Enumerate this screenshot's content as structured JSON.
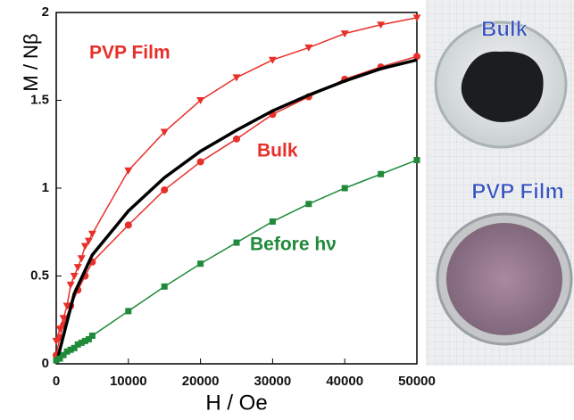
{
  "chart_data": {
    "type": "line",
    "xlabel": "H / Oe",
    "ylabel": "M / Nβ",
    "xlim": [
      0,
      50000
    ],
    "ylim": [
      0,
      2
    ],
    "xticks": [
      0,
      10000,
      20000,
      30000,
      40000,
      50000
    ],
    "yticks": [
      0,
      0.5,
      1,
      1.5,
      2
    ],
    "series": [
      {
        "name": "PVP Film",
        "color": "#e8302a",
        "marker": "triangle",
        "x": [
          0,
          500,
          1000,
          1500,
          2000,
          2500,
          3000,
          3500,
          4000,
          4500,
          5000,
          10000,
          15000,
          20000,
          25000,
          30000,
          35000,
          40000,
          45000,
          50000
        ],
        "values": [
          0.13,
          0.2,
          0.26,
          0.33,
          0.45,
          0.5,
          0.55,
          0.6,
          0.67,
          0.7,
          0.74,
          1.1,
          1.32,
          1.5,
          1.63,
          1.73,
          1.8,
          1.88,
          1.93,
          1.97
        ]
      },
      {
        "name": "Bulk",
        "color": "#e8302a",
        "marker": "circle",
        "x": [
          0,
          500,
          1000,
          2000,
          3000,
          4000,
          5000,
          10000,
          15000,
          20000,
          25000,
          30000,
          35000,
          40000,
          45000,
          50000
        ],
        "values": [
          0.05,
          0.15,
          0.22,
          0.33,
          0.42,
          0.5,
          0.58,
          0.79,
          0.99,
          1.15,
          1.28,
          1.42,
          1.52,
          1.62,
          1.69,
          1.75
        ]
      },
      {
        "color": "#000000",
        "marker": "none",
        "width": 3.5,
        "x": [
          0,
          2500,
          5000,
          10000,
          15000,
          20000,
          25000,
          30000,
          35000,
          40000,
          45000,
          50000
        ],
        "values": [
          0,
          0.4,
          0.62,
          0.87,
          1.06,
          1.21,
          1.33,
          1.44,
          1.53,
          1.61,
          1.68,
          1.73
        ]
      },
      {
        "name": "Before hν",
        "color": "#1f8a3a",
        "marker": "square",
        "x": [
          0,
          500,
          1000,
          1500,
          2000,
          2500,
          3000,
          3500,
          4000,
          4500,
          5000,
          10000,
          15000,
          20000,
          25000,
          30000,
          35000,
          40000,
          45000,
          50000
        ],
        "values": [
          0.02,
          0.03,
          0.05,
          0.07,
          0.08,
          0.09,
          0.11,
          0.12,
          0.13,
          0.14,
          0.16,
          0.3,
          0.44,
          0.57,
          0.69,
          0.81,
          0.91,
          1.0,
          1.08,
          1.16
        ]
      }
    ]
  },
  "photo": {
    "labels": [
      "Bulk",
      "PVP Film"
    ]
  }
}
